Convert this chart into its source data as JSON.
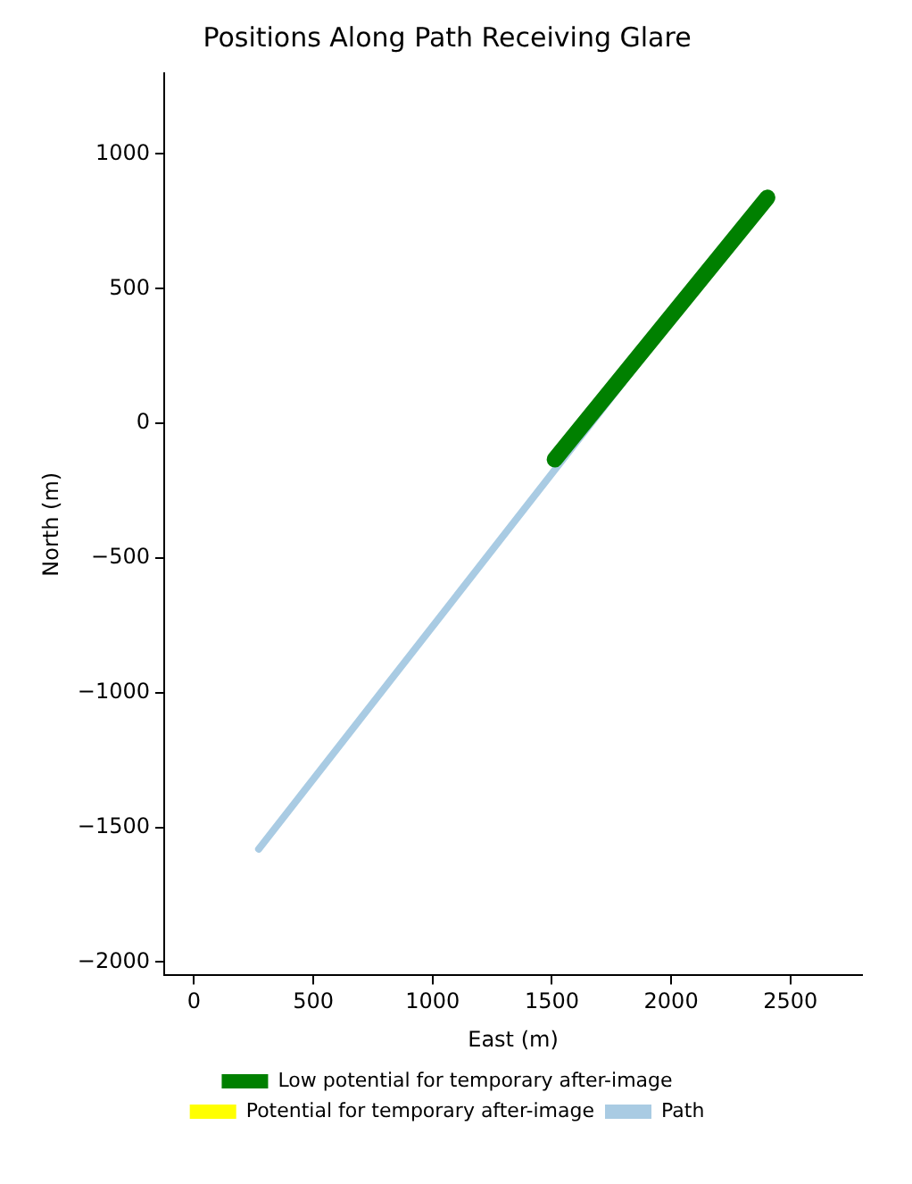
{
  "chart_data": {
    "type": "line",
    "title": "Positions Along Path Receiving Glare",
    "xlabel": "East (m)",
    "ylabel": "North (m)",
    "xlim": [
      -125,
      2800
    ],
    "xticks": [
      0,
      500,
      1000,
      1500,
      2000,
      2500
    ],
    "ylim": [
      -2050,
      1300
    ],
    "yticks": [
      -2000,
      -1500,
      -1000,
      -500,
      0,
      500,
      1000
    ],
    "grid": false,
    "legend": "bottom",
    "marker": "none",
    "series": [
      {
        "name": "Low potential for temporary after-image",
        "color": "#008000",
        "x": [
          1512,
          2403
        ],
        "values": [
          -134,
          838
        ]
      },
      {
        "name": "Potential for temporary after-image",
        "color": "#ffff00"
      },
      {
        "name": "Path",
        "color": "#a9cbe3",
        "x": [
          271,
          2403
        ],
        "values": [
          -1581,
          838
        ]
      }
    ]
  }
}
